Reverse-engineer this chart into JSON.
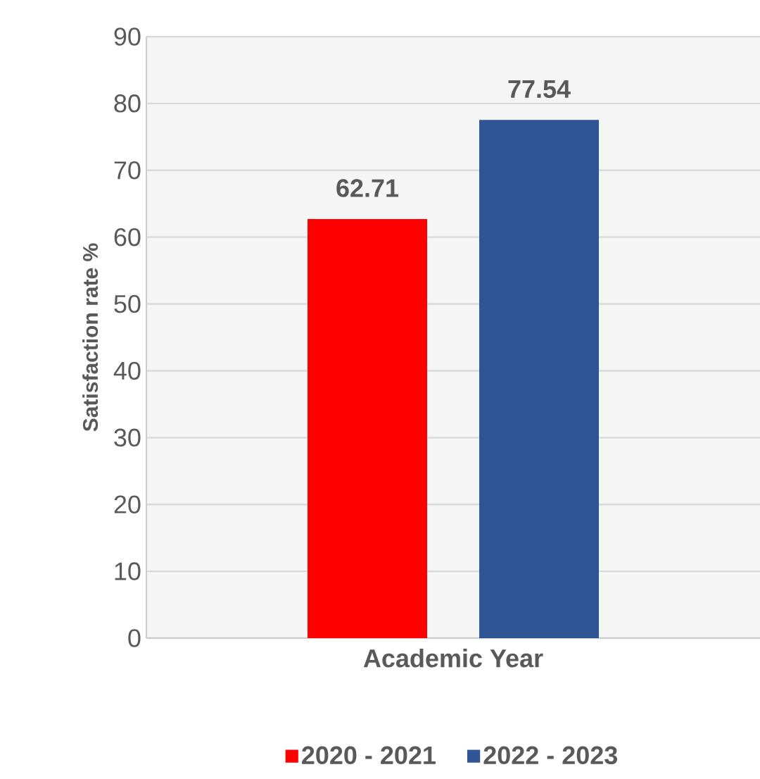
{
  "chart_data": {
    "type": "bar",
    "ylabel": "Satisfaction rate %",
    "categories": [
      "Academic Year"
    ],
    "series": [
      {
        "name": "2020 - 2021",
        "color": "#ff0000",
        "values": [
          62.71
        ]
      },
      {
        "name": "2022 - 2023",
        "color": "#2f5597",
        "values": [
          77.54
        ]
      }
    ],
    "ylim": [
      0,
      90
    ],
    "yticks": [
      0,
      10,
      20,
      30,
      40,
      50,
      60,
      70,
      80,
      90
    ],
    "grid": "y",
    "legend": "bottom",
    "data_labels": true
  }
}
